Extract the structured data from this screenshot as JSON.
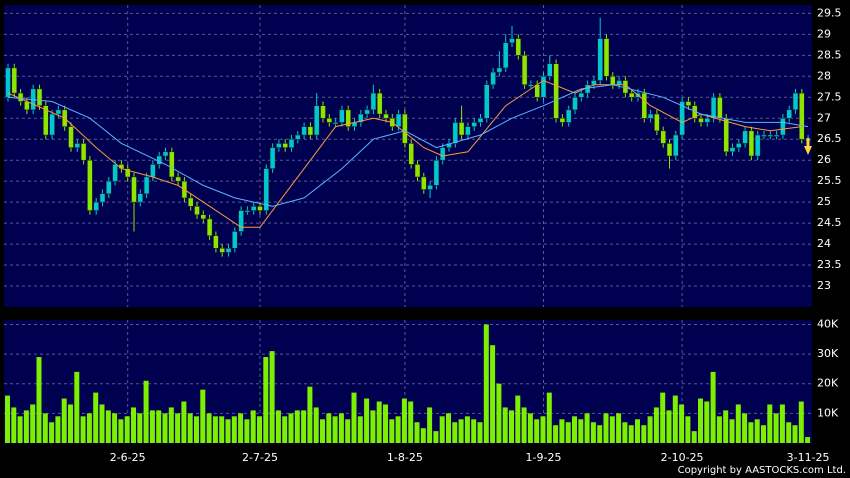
{
  "chart_data": {
    "type": "candlestick",
    "categories": [
      null,
      null,
      null,
      null,
      null,
      null,
      null,
      null,
      null,
      null,
      null,
      null,
      null,
      null,
      null,
      null,
      null,
      null,
      null,
      "2-6-25",
      null,
      null,
      null,
      null,
      null,
      null,
      null,
      null,
      null,
      null,
      null,
      null,
      null,
      null,
      null,
      null,
      null,
      null,
      null,
      null,
      "2-7-25",
      null,
      null,
      null,
      null,
      null,
      null,
      null,
      null,
      null,
      null,
      null,
      null,
      null,
      null,
      null,
      null,
      null,
      null,
      null,
      null,
      null,
      null,
      "1-8-25",
      null,
      null,
      null,
      null,
      null,
      null,
      null,
      null,
      null,
      null,
      null,
      null,
      null,
      null,
      null,
      null,
      null,
      null,
      null,
      null,
      null,
      "1-9-25",
      null,
      null,
      null,
      null,
      null,
      null,
      null,
      null,
      null,
      null,
      null,
      null,
      null,
      null,
      null,
      null,
      null,
      null,
      null,
      null,
      null,
      "2-10-25",
      null,
      null,
      null,
      null,
      null,
      null,
      null,
      null,
      null,
      null,
      null,
      null,
      null,
      null,
      null,
      null,
      null,
      null,
      null,
      "3-11-25"
    ],
    "open": [
      27.5,
      28.2,
      27.6,
      27.4,
      27.2,
      27.7,
      27.3,
      26.6,
      27.1,
      27.2,
      26.8,
      26.3,
      26.4,
      26.0,
      24.8,
      25.0,
      25.2,
      25.5,
      25.9,
      25.8,
      25.6,
      25.0,
      25.2,
      25.6,
      25.9,
      26.1,
      26.2,
      25.6,
      25.5,
      25.1,
      24.9,
      24.7,
      24.6,
      24.2,
      23.9,
      23.8,
      23.9,
      24.3,
      24.8,
      24.8,
      24.9,
      24.8,
      25.8,
      26.3,
      26.4,
      26.3,
      26.5,
      26.6,
      26.8,
      26.6,
      27.3,
      27.0,
      26.9,
      26.9,
      27.2,
      26.8,
      26.9,
      27.1,
      27.2,
      27.6,
      27.1,
      27.0,
      26.8,
      27.1,
      26.4,
      25.9,
      25.6,
      25.3,
      25.4,
      26.0,
      26.3,
      26.4,
      26.9,
      26.6,
      26.8,
      26.9,
      27.0,
      27.8,
      28.1,
      28.2,
      28.8,
      28.9,
      28.5,
      27.8,
      27.8,
      27.5,
      28.0,
      28.3,
      27.0,
      26.9,
      27.2,
      27.5,
      27.6,
      27.8,
      27.9,
      28.9,
      28.0,
      27.8,
      27.9,
      27.6,
      27.5,
      27.6,
      27.0,
      27.1,
      26.7,
      26.4,
      26.1,
      26.6,
      27.4,
      27.3,
      27.0,
      26.9,
      27.0,
      27.5,
      27.0,
      26.2,
      26.3,
      26.4,
      26.7,
      26.1,
      26.6,
      26.6,
      26.6,
      26.6,
      27.0,
      27.2,
      27.6,
      26.5
    ],
    "high": [
      28.3,
      28.3,
      27.7,
      27.5,
      27.8,
      27.8,
      27.4,
      27.2,
      27.3,
      27.3,
      26.9,
      26.5,
      26.5,
      26.1,
      25.1,
      25.3,
      25.6,
      26.0,
      26.0,
      25.9,
      25.7,
      25.3,
      25.7,
      26.0,
      26.2,
      26.3,
      26.3,
      25.7,
      25.6,
      25.2,
      25.0,
      24.8,
      24.7,
      24.3,
      24.0,
      24.0,
      24.4,
      24.9,
      24.9,
      25.0,
      25.0,
      25.9,
      26.4,
      26.5,
      26.5,
      26.6,
      26.7,
      26.9,
      26.9,
      27.6,
      27.4,
      27.1,
      27.0,
      27.3,
      27.3,
      27.0,
      27.2,
      27.3,
      27.8,
      27.7,
      27.2,
      27.1,
      27.2,
      27.2,
      26.5,
      26.0,
      25.7,
      25.5,
      26.1,
      26.4,
      26.5,
      27.0,
      27.3,
      26.9,
      27.0,
      27.1,
      27.9,
      28.2,
      28.6,
      29.0,
      29.2,
      29.0,
      28.6,
      27.9,
      27.9,
      28.1,
      28.5,
      28.4,
      27.1,
      27.3,
      27.6,
      27.7,
      27.9,
      28.0,
      29.4,
      29.0,
      28.1,
      28.0,
      28.0,
      27.7,
      27.7,
      27.7,
      27.2,
      27.2,
      26.8,
      26.5,
      26.7,
      27.5,
      27.5,
      27.4,
      27.1,
      27.1,
      27.6,
      27.6,
      27.1,
      26.4,
      26.5,
      26.8,
      26.8,
      26.7,
      26.7,
      26.7,
      26.7,
      27.1,
      27.3,
      27.7,
      27.7,
      26.6
    ],
    "low": [
      27.4,
      27.5,
      27.3,
      27.1,
      27.1,
      27.2,
      26.5,
      26.5,
      27.0,
      26.7,
      26.2,
      26.2,
      25.9,
      24.7,
      24.7,
      24.9,
      25.1,
      25.4,
      25.7,
      25.5,
      24.3,
      24.9,
      25.1,
      25.5,
      25.8,
      26.0,
      25.5,
      25.4,
      25.0,
      24.8,
      24.6,
      24.5,
      24.1,
      23.8,
      23.7,
      23.7,
      23.8,
      24.2,
      24.7,
      24.7,
      24.7,
      24.7,
      25.7,
      26.2,
      26.2,
      26.2,
      26.4,
      26.5,
      26.5,
      26.5,
      26.9,
      26.8,
      26.8,
      26.8,
      26.7,
      26.7,
      26.8,
      27.0,
      27.1,
      27.0,
      26.9,
      26.7,
      26.7,
      26.3,
      25.8,
      25.5,
      25.2,
      25.1,
      25.3,
      25.9,
      26.2,
      26.3,
      26.5,
      26.5,
      26.7,
      26.8,
      26.9,
      27.7,
      28.0,
      28.1,
      28.7,
      28.4,
      27.7,
      27.7,
      27.4,
      27.4,
      27.9,
      26.9,
      26.8,
      26.8,
      27.1,
      27.4,
      27.5,
      27.7,
      27.8,
      27.9,
      27.7,
      27.7,
      27.5,
      27.4,
      27.4,
      26.9,
      26.9,
      26.6,
      26.3,
      25.8,
      26.0,
      26.5,
      27.2,
      26.9,
      26.8,
      26.8,
      26.9,
      26.9,
      26.1,
      26.1,
      26.2,
      26.3,
      26.0,
      26.0,
      26.5,
      26.5,
      26.5,
      26.5,
      26.9,
      27.1,
      26.4,
      26.4
    ],
    "close": [
      28.2,
      27.6,
      27.4,
      27.2,
      27.7,
      27.3,
      26.6,
      27.1,
      27.2,
      26.8,
      26.3,
      26.4,
      26.0,
      24.8,
      25.0,
      25.2,
      25.5,
      25.9,
      25.8,
      25.6,
      25.0,
      25.2,
      25.6,
      25.9,
      26.1,
      26.2,
      25.6,
      25.5,
      25.1,
      24.9,
      24.7,
      24.6,
      24.2,
      23.9,
      23.8,
      23.9,
      24.3,
      24.8,
      24.8,
      24.9,
      24.8,
      25.8,
      26.3,
      26.4,
      26.3,
      26.5,
      26.6,
      26.8,
      26.6,
      27.3,
      27.0,
      26.9,
      26.9,
      27.2,
      26.8,
      26.9,
      27.1,
      27.2,
      27.6,
      27.1,
      27.0,
      26.8,
      27.1,
      26.4,
      25.9,
      25.6,
      25.3,
      25.4,
      26.0,
      26.3,
      26.4,
      26.9,
      26.6,
      26.8,
      26.9,
      27.0,
      27.8,
      28.1,
      28.2,
      28.8,
      28.9,
      28.5,
      27.8,
      27.8,
      27.5,
      28.0,
      28.3,
      27.0,
      26.9,
      27.2,
      27.5,
      27.6,
      27.8,
      27.9,
      28.9,
      28.0,
      27.8,
      27.9,
      27.6,
      27.5,
      27.6,
      27.0,
      27.1,
      26.7,
      26.4,
      26.1,
      26.6,
      27.4,
      27.3,
      27.0,
      26.9,
      27.0,
      27.5,
      27.0,
      26.2,
      26.3,
      26.4,
      26.7,
      26.1,
      26.6,
      26.6,
      26.6,
      26.6,
      27.0,
      27.2,
      27.6,
      26.5,
      26.5
    ],
    "volume": [
      16000,
      12000,
      9000,
      11000,
      13000,
      29000,
      10000,
      7000,
      9000,
      15000,
      13000,
      24000,
      9000,
      10000,
      17000,
      13000,
      11000,
      10000,
      8000,
      9000,
      12000,
      10000,
      21000,
      11000,
      11000,
      10000,
      12000,
      10000,
      14000,
      10000,
      9000,
      18000,
      10000,
      9000,
      9000,
      8000,
      9000,
      10000,
      8000,
      11000,
      9000,
      29000,
      31000,
      11000,
      9000,
      10000,
      11000,
      11000,
      19000,
      12000,
      8000,
      10000,
      9000,
      10000,
      8000,
      17000,
      9000,
      15000,
      11000,
      14000,
      13000,
      8000,
      9000,
      15000,
      14000,
      7000,
      5000,
      12000,
      4000,
      9000,
      10000,
      7000,
      8000,
      9000,
      8000,
      7000,
      40000,
      33000,
      20000,
      12000,
      11000,
      16000,
      12000,
      10000,
      8000,
      9000,
      17000,
      6000,
      8000,
      7000,
      9000,
      8000,
      10000,
      7000,
      6000,
      10000,
      9000,
      10000,
      7000,
      6000,
      8000,
      6000,
      9000,
      12000,
      17000,
      11000,
      16000,
      13000,
      9000,
      4000,
      15000,
      14000,
      24000,
      9000,
      11000,
      8000,
      13000,
      10000,
      7000,
      8000,
      6000,
      13000,
      10000,
      13000,
      7000,
      6000,
      14000,
      2000
    ],
    "series": [
      {
        "color": "#ff9a3c",
        "x": [
          0,
          9,
          14,
          18,
          23,
          27,
          31,
          37,
          40,
          43,
          48,
          52,
          58,
          61,
          66,
          69,
          73,
          79,
          85,
          90,
          93,
          98,
          102,
          107,
          110,
          117,
          121,
          126
        ],
        "values": [
          27.6,
          27.0,
          26.3,
          25.8,
          25.6,
          25.4,
          25.0,
          24.4,
          24.4,
          25.0,
          26.0,
          26.8,
          27.0,
          26.9,
          26.3,
          26.1,
          26.2,
          27.3,
          27.9,
          27.6,
          27.8,
          27.8,
          27.3,
          26.9,
          27.1,
          26.8,
          26.7,
          26.8
        ]
      },
      {
        "color": "#5ab4ff",
        "x": [
          0,
          7,
          13,
          18,
          25,
          31,
          36,
          42,
          47,
          53,
          58,
          63,
          68,
          75,
          80,
          85,
          91,
          96,
          104,
          110,
          117,
          123,
          127
        ],
        "values": [
          27.5,
          27.4,
          27.0,
          26.4,
          25.9,
          25.4,
          25.1,
          24.9,
          25.1,
          25.8,
          26.5,
          26.7,
          26.3,
          26.6,
          27.0,
          27.3,
          27.7,
          27.8,
          27.5,
          27.1,
          26.9,
          26.9,
          26.8
        ]
      }
    ],
    "up_color": "#00c8d2",
    "down_color": "#8ce600",
    "volume_color": "#7cf000",
    "ylim": [
      22.5,
      29.7
    ],
    "yticks": [
      23,
      23.5,
      24,
      24.5,
      25,
      25.5,
      26,
      26.5,
      27,
      27.5,
      28,
      28.5,
      29,
      29.5
    ],
    "volume_ylim": [
      0,
      41500
    ],
    "volume_yticks": [
      {
        "value": 10000,
        "label": "10K"
      },
      {
        "value": 20000,
        "label": "20K"
      },
      {
        "value": 30000,
        "label": "30K"
      },
      {
        "value": 40000,
        "label": "40K"
      }
    ],
    "grid": true,
    "copyright": "Copyright by AASTOCKS.com Ltd."
  }
}
